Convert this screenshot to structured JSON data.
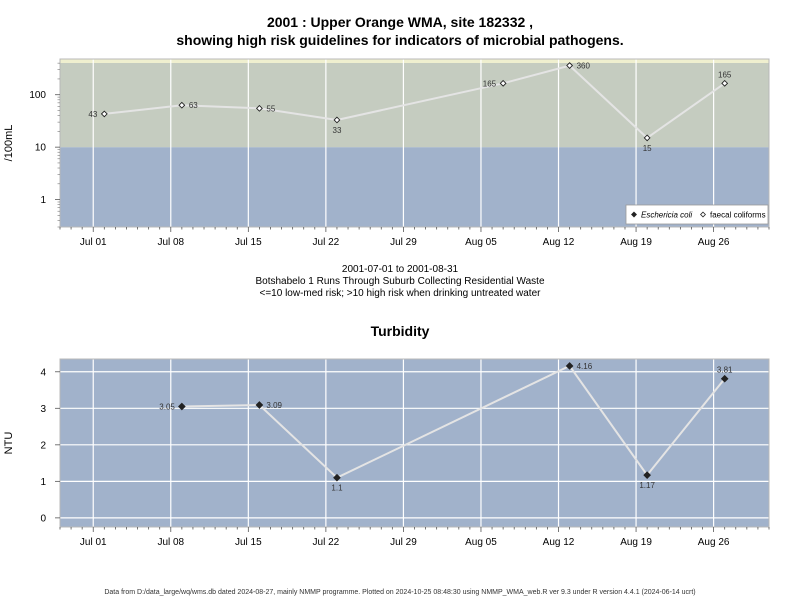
{
  "titles": {
    "line1": "2001 : Upper Orange WMA, site 182332 ,",
    "line2": "showing high risk guidelines for indicators of microbial pathogens."
  },
  "subtitle": {
    "line1": "2001-07-01 to 2001-08-31",
    "line2": "Botshabelo 1 Runs Through Suburb Collecting Residential Waste",
    "line3": "<=10 low-med risk; >10 high risk when drinking untreated water"
  },
  "footer": "Data from D:/data_large/wq/wms.db dated 2024-08-27, mainly NMMP programme. Plotted on 2024-10-25 08:48:30 using NMMP_WMA_web.R ver 9.3 under R version 4.4.1 (2024-06-14 ucrt)",
  "colors": {
    "low_band": "#a1b2cb",
    "high_band": "#c5ccc0",
    "top_band": "#efefcf",
    "line": "#e4e4e4",
    "grid": "#ffffff"
  },
  "chart_data": [
    {
      "type": "line",
      "title": "",
      "ylabel": "/100mL",
      "y_scale": "log",
      "ylim": [
        0.3,
        480
      ],
      "xlim": [
        "2001-06-28",
        "2001-08-31"
      ],
      "x_ticks": [
        "Jul 01",
        "Jul 08",
        "Jul 15",
        "Jul 22",
        "Jul 29",
        "Aug 05",
        "Aug 12",
        "Aug 19",
        "Aug 26"
      ],
      "y_ticks": [
        "1",
        "10",
        "100"
      ],
      "guidelines": [
        {
          "value": 10,
          "label": "<=10 low-med risk; >10 high risk"
        }
      ],
      "legend": {
        "position": "bottom-right",
        "entries": [
          "Eschericia coli",
          "faecal coliforms"
        ]
      },
      "series": [
        {
          "name": "faecal coliforms",
          "marker": "open-diamond",
          "points": [
            {
              "x": "2001-07-02",
              "y": 43,
              "label": "43"
            },
            {
              "x": "2001-07-09",
              "y": 63,
              "label": "63"
            },
            {
              "x": "2001-07-16",
              "y": 55,
              "label": "55"
            },
            {
              "x": "2001-07-23",
              "y": 33,
              "label": "33"
            },
            {
              "x": "2001-08-07",
              "y": 165,
              "label": "165"
            },
            {
              "x": "2001-08-13",
              "y": 360,
              "label": "360"
            },
            {
              "x": "2001-08-20",
              "y": 15,
              "label": "15"
            },
            {
              "x": "2001-08-27",
              "y": 165,
              "label": "165"
            }
          ]
        }
      ]
    },
    {
      "type": "line",
      "title": "Turbidity",
      "ylabel": "NTU",
      "ylim": [
        -0.25,
        4.35
      ],
      "xlim": [
        "2001-06-28",
        "2001-08-31"
      ],
      "x_ticks": [
        "Jul 01",
        "Jul 08",
        "Jul 15",
        "Jul 22",
        "Jul 29",
        "Aug 05",
        "Aug 12",
        "Aug 19",
        "Aug 26"
      ],
      "y_ticks": [
        "0",
        "1",
        "2",
        "3",
        "4"
      ],
      "series": [
        {
          "name": "",
          "marker": "filled-diamond",
          "points": [
            {
              "x": "2001-07-09",
              "y": 3.05,
              "label": "3.05"
            },
            {
              "x": "2001-07-16",
              "y": 3.09,
              "label": "3.09"
            },
            {
              "x": "2001-07-23",
              "y": 1.1,
              "label": "1.1"
            },
            {
              "x": "2001-08-13",
              "y": 4.16,
              "label": "4.16"
            },
            {
              "x": "2001-08-20",
              "y": 1.17,
              "label": "1.17"
            },
            {
              "x": "2001-08-27",
              "y": 3.81,
              "label": "3.81"
            }
          ]
        }
      ]
    }
  ]
}
